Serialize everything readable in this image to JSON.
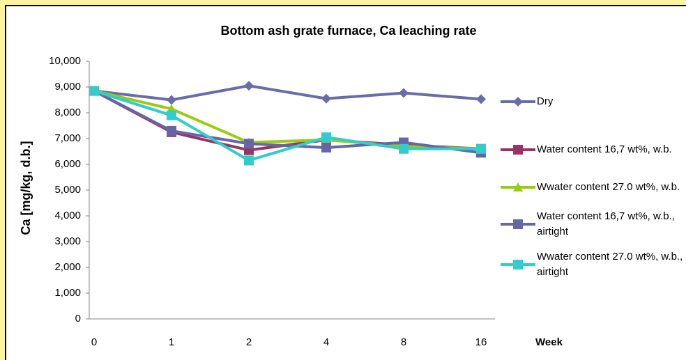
{
  "chart_data": {
    "type": "line",
    "title": "Bottom ash grate furnace, Ca leaching rate",
    "y_label": "Ca [mg/kg, d.b.]",
    "x_label": "Week",
    "categories": [
      "0",
      "1",
      "2",
      "4",
      "8",
      "16"
    ],
    "ylim": [
      0,
      10000
    ],
    "yticks": [
      0,
      {
        "value": 1000,
        "label": "1,000"
      },
      {
        "value": 2000,
        "label": "2,000"
      },
      {
        "value": 3000,
        "label": "3,000"
      },
      {
        "value": 4000,
        "label": "4,000"
      },
      {
        "value": 5000,
        "label": "5,000"
      },
      {
        "value": 6000,
        "label": "6,000"
      },
      {
        "value": 7000,
        "label": "7,000"
      },
      {
        "value": 8000,
        "label": "8,000"
      },
      {
        "value": 9000,
        "label": "9,000"
      },
      {
        "value": 10000,
        "label": "10,000"
      }
    ],
    "grid": false,
    "legend": "right",
    "series": [
      {
        "name": "Dry",
        "color": "#6a6ca8",
        "marker": "diamond",
        "values": [
          8850,
          8500,
          9050,
          8550,
          8770,
          8530
        ]
      },
      {
        "name": "Water content 16,7 wt%, w.b.",
        "color": "#993366",
        "marker": "square",
        "values": [
          8850,
          7250,
          6550,
          6950,
          6750,
          6600
        ]
      },
      {
        "name": "Wwater content 27.0 wt%, w.b.",
        "color": "#99cc11",
        "marker": "triangle",
        "values": [
          8850,
          8150,
          6850,
          6950,
          6700,
          6600
        ]
      },
      {
        "name": "Water content 16,7 wt%, w.b., airtight",
        "color": "#6666a6",
        "marker": "square",
        "values": [
          8850,
          7300,
          6800,
          6650,
          6850,
          6450
        ]
      },
      {
        "name": "Wwater content 27.0 wt%, w.b., airtight",
        "color": "#33cccc",
        "marker": "square",
        "values": [
          8850,
          7900,
          6150,
          7050,
          6600,
          6600
        ]
      }
    ]
  }
}
